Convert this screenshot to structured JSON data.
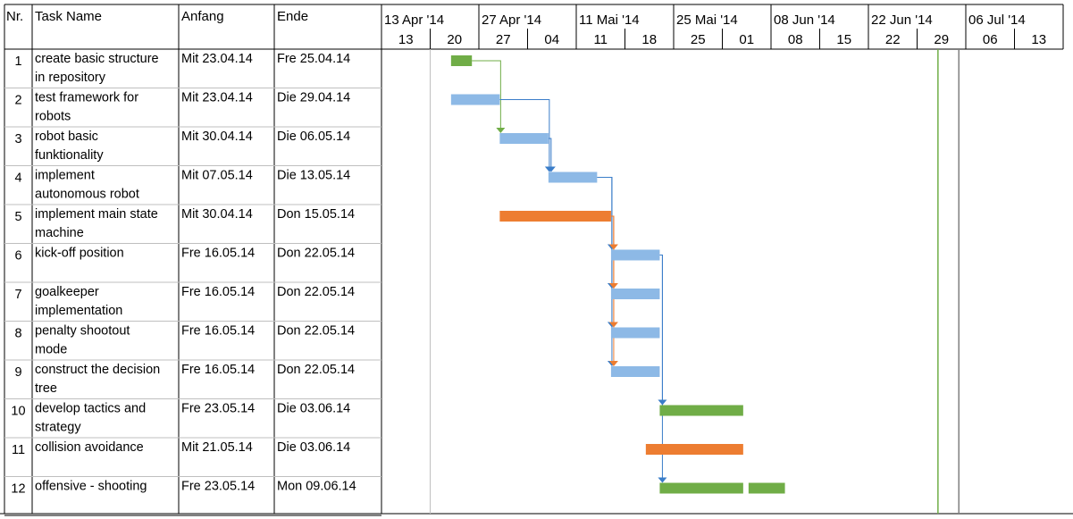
{
  "table": {
    "headers": {
      "nr": "Nr.",
      "task_name": "Task Name",
      "start": "Anfang",
      "end": "Ende"
    }
  },
  "timescale": {
    "major": [
      "13 Apr '14",
      "27 Apr '14",
      "11 Mai '14",
      "25 Mai '14",
      "08 Jun '14",
      "22 Jun '14",
      "06 Jul '14"
    ],
    "minor": [
      "13",
      "20",
      "27",
      "04",
      "11",
      "18",
      "25",
      "01",
      "08",
      "15",
      "22",
      "29",
      "06",
      "13"
    ]
  },
  "colors": {
    "normal": "#8db9e6",
    "normal_link": "#3a7dc9",
    "critical": "#ed7d31",
    "summary": "#70ad47",
    "milestone_line": "#70ad47",
    "today_line": "#808080"
  },
  "chart_data": {
    "type": "gantt",
    "x_axis": {
      "start": "2014-04-13",
      "end": "2014-07-20"
    },
    "tasks": [
      {
        "nr": "1",
        "name": [
          "create basic structure",
          "in repository"
        ],
        "start_label": "Mit 23.04.14",
        "end_label": "Fre 25.04.14",
        "start": "2014-04-23",
        "end": "2014-04-25",
        "kind": "summary"
      },
      {
        "nr": "2",
        "name": [
          "test framework for",
          "robots"
        ],
        "start_label": "Mit 23.04.14",
        "end_label": "Die 29.04.14",
        "start": "2014-04-23",
        "end": "2014-04-29",
        "kind": "normal"
      },
      {
        "nr": "3",
        "name": [
          "robot basic",
          "funktionality"
        ],
        "start_label": "Mit 30.04.14",
        "end_label": "Die 06.05.14",
        "start": "2014-04-30",
        "end": "2014-05-06",
        "kind": "normal"
      },
      {
        "nr": "4",
        "name": [
          "implement",
          "autonomous robot"
        ],
        "start_label": "Mit 07.05.14",
        "end_label": "Die 13.05.14",
        "start": "2014-05-07",
        "end": "2014-05-13",
        "kind": "normal"
      },
      {
        "nr": "5",
        "name": [
          "implement main state",
          "machine"
        ],
        "start_label": "Mit 30.04.14",
        "end_label": "Don 15.05.14",
        "start": "2014-04-30",
        "end": "2014-05-15",
        "kind": "critical"
      },
      {
        "nr": "6",
        "name": [
          "kick-off position"
        ],
        "start_label": "Fre 16.05.14",
        "end_label": "Don 22.05.14",
        "start": "2014-05-16",
        "end": "2014-05-22",
        "kind": "normal"
      },
      {
        "nr": "7",
        "name": [
          "goalkeeper",
          "implementation"
        ],
        "start_label": "Fre 16.05.14",
        "end_label": "Don 22.05.14",
        "start": "2014-05-16",
        "end": "2014-05-22",
        "kind": "normal"
      },
      {
        "nr": "8",
        "name": [
          "penalty shootout",
          "mode"
        ],
        "start_label": "Fre 16.05.14",
        "end_label": "Don 22.05.14",
        "start": "2014-05-16",
        "end": "2014-05-22",
        "kind": "normal"
      },
      {
        "nr": "9",
        "name": [
          "construct the decision",
          "tree"
        ],
        "start_label": "Fre 16.05.14",
        "end_label": "Don 22.05.14",
        "start": "2014-05-16",
        "end": "2014-05-22",
        "kind": "normal"
      },
      {
        "nr": "10",
        "name": [
          "develop tactics and",
          "strategy"
        ],
        "start_label": "Fre 23.05.14",
        "end_label": "Die 03.06.14",
        "start": "2014-05-23",
        "end": "2014-06-03",
        "kind": "summary"
      },
      {
        "nr": "11",
        "name": [
          "collision avoidance"
        ],
        "start_label": "Mit 21.05.14",
        "end_label": "Die 03.06.14",
        "start": "2014-05-21",
        "end": "2014-06-03",
        "kind": "critical"
      },
      {
        "nr": "12",
        "name": [
          "offensive - shooting"
        ],
        "start_label": "Fre 23.05.14",
        "end_label": "Mon 09.06.14",
        "start": "2014-05-23",
        "end": "2014-06-09",
        "kind": "summary",
        "split": true
      }
    ],
    "vertical_lines": [
      {
        "date": "2014-07-02",
        "kind": "milestone"
      },
      {
        "date": "2014-07-05",
        "kind": "today"
      }
    ],
    "links": [
      {
        "from": 1,
        "to": 3,
        "color": "summary"
      },
      {
        "from": 2,
        "to": 4,
        "color": "normal_link"
      },
      {
        "from": 3,
        "to": 4,
        "color": "normal_link"
      },
      {
        "from": 4,
        "to": 6,
        "color": "normal_link"
      },
      {
        "from": 4,
        "to": 7,
        "color": "normal_link"
      },
      {
        "from": 4,
        "to": 8,
        "color": "normal_link"
      },
      {
        "from": 4,
        "to": 9,
        "color": "normal_link"
      },
      {
        "from": 5,
        "to": 6,
        "color": "critical"
      },
      {
        "from": 5,
        "to": 7,
        "color": "critical"
      },
      {
        "from": 5,
        "to": 8,
        "color": "critical"
      },
      {
        "from": 5,
        "to": 9,
        "color": "critical"
      },
      {
        "from": 6,
        "to": 10,
        "color": "normal_link"
      },
      {
        "from": 6,
        "to": 12,
        "color": "normal_link"
      }
    ]
  }
}
